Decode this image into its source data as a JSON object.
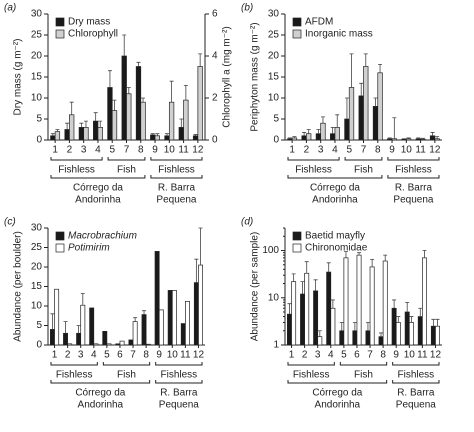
{
  "chart_data": [
    {
      "type": "bar",
      "panel": "(a)",
      "ylabel": "Dry mass (g m⁻²)",
      "y2label": "Chlorophyll a (mg m⁻²)",
      "categories": [
        "1",
        "2",
        "3",
        "4",
        "5",
        "7",
        "8",
        "9",
        "10",
        "11",
        "12"
      ],
      "series": [
        {
          "name": "Dry mass",
          "color": "#1a1a1a",
          "values": [
            1,
            2.5,
            3,
            4.5,
            12.5,
            20,
            17.5,
            1.2,
            1,
            3,
            1
          ],
          "errors": [
            0.5,
            1.5,
            1,
            2,
            4,
            5,
            1,
            0.3,
            0.5,
            2,
            0.3
          ]
        },
        {
          "name": "Chlorophyll",
          "color": "#d0d0d0",
          "axis": "y2",
          "values": [
            0.4,
            1.2,
            0.6,
            0.6,
            1.4,
            2.2,
            1.8,
            0.2,
            1.8,
            1.9,
            3.5
          ],
          "errors": [
            0.1,
            0.6,
            0.3,
            0.3,
            0.5,
            0.3,
            0.2,
            0.1,
            1,
            0.7,
            0.6
          ]
        }
      ],
      "ylim": [
        0,
        30
      ],
      "yticks": [
        0,
        5,
        10,
        15,
        20,
        25,
        30
      ],
      "y2lim": [
        0,
        6
      ],
      "y2ticks": [
        0,
        2,
        4,
        6
      ],
      "legend": "upper left",
      "groups": [
        "Fishless",
        "Fish",
        "Fishless"
      ],
      "sites": [
        [
          "Córrego da",
          "Andorinha"
        ],
        [
          "R. Barra",
          "Pequena"
        ]
      ]
    },
    {
      "type": "bar",
      "panel": "(b)",
      "ylabel": "Periphyton mass (g m⁻²)",
      "categories": [
        "1",
        "2",
        "3",
        "4",
        "5",
        "7",
        "8",
        "9",
        "10",
        "11",
        "12"
      ],
      "series": [
        {
          "name": "AFDM",
          "color": "#1a1a1a",
          "values": [
            0.3,
            1,
            1.5,
            1.5,
            5,
            10.5,
            8,
            0.3,
            0.2,
            0.3,
            1
          ],
          "errors": [
            0.2,
            0.8,
            1,
            1.5,
            5,
            3,
            2,
            0.2,
            0.1,
            0.2,
            0.8
          ]
        },
        {
          "name": "Inorganic mass",
          "color": "#d0d0d0",
          "values": [
            0.5,
            1.5,
            4,
            3,
            12.5,
            17.5,
            16,
            0.3,
            0.3,
            0.2,
            0.3
          ],
          "errors": [
            0.3,
            1,
            1.5,
            3,
            8,
            3,
            2,
            5,
            0.2,
            0.2,
            0.5
          ]
        }
      ],
      "ylim": [
        0,
        30
      ],
      "yticks": [
        0,
        5,
        10,
        15,
        20,
        25,
        30
      ],
      "legend": "upper left",
      "groups": [
        "Fishless",
        "Fish",
        "Fishless"
      ],
      "sites": [
        [
          "Córrego da",
          "Andorinha"
        ],
        [
          "R. Barra",
          "Pequena"
        ]
      ]
    },
    {
      "type": "bar",
      "panel": "(c)",
      "ylabel": "Abundance (per boulder)",
      "italic_legend": true,
      "categories": [
        "1",
        "2",
        "3",
        "4",
        "5",
        "6",
        "7",
        "8",
        "9",
        "10",
        "11",
        "12"
      ],
      "series": [
        {
          "name": "Macrobrachium",
          "color": "#1a1a1a",
          "values": [
            4,
            3,
            3,
            9.5,
            3.5,
            0.3,
            1.3,
            7.8,
            24,
            14,
            5.5,
            16
          ],
          "errors": [
            4,
            3,
            2,
            0,
            0,
            0,
            0,
            1,
            0,
            0,
            0,
            6
          ]
        },
        {
          "name": "Potimirim",
          "color": "#ffffff",
          "values": [
            14.3,
            0.3,
            10.2,
            0.3,
            0.3,
            1,
            6,
            0.2,
            9,
            14,
            11.2,
            20.5
          ],
          "errors": [
            0,
            0,
            3,
            0,
            0,
            0,
            1,
            0,
            0,
            0,
            0,
            9.5
          ]
        }
      ],
      "ylim": [
        0,
        30
      ],
      "yticks": [
        0,
        5,
        10,
        15,
        20,
        25,
        30
      ],
      "legend": "upper left",
      "groups": [
        "Fishless",
        "Fish",
        "Fishless"
      ],
      "sites": [
        [
          "Córrego da",
          "Andorinha"
        ],
        [
          "R. Barra",
          "Pequena"
        ]
      ]
    },
    {
      "type": "bar",
      "panel": "(d)",
      "ylabel": "Abundance (per sample)",
      "log": true,
      "categories": [
        "1",
        "2",
        "3",
        "4",
        "5",
        "6",
        "7",
        "8",
        "9",
        "10",
        "11",
        "12"
      ],
      "series": [
        {
          "name": "Baetid mayfly",
          "color": "#1a1a1a",
          "values": [
            4.5,
            12,
            14,
            35,
            2,
            2,
            2,
            1.5,
            6,
            5,
            4,
            2.5
          ],
          "errors": [
            3,
            10,
            10,
            20,
            1,
            1,
            1,
            0.3,
            3,
            3,
            2,
            1
          ]
        },
        {
          "name": "Chironomidae",
          "color": "#ffffff",
          "values": [
            22,
            33,
            1.5,
            6,
            70,
            80,
            45,
            60,
            3,
            3,
            70,
            2.5
          ],
          "errors": [
            10,
            25,
            0.5,
            3,
            25,
            10,
            20,
            20,
            1,
            1,
            30,
            1
          ]
        }
      ],
      "ylim": [
        1,
        300
      ],
      "yticks": [
        1,
        10,
        100
      ],
      "legend": "upper left",
      "groups": [
        "Fishless",
        "Fish",
        "Fishless"
      ],
      "sites": [
        [
          "Córrego da",
          "Andorinha"
        ],
        [
          "R. Barra",
          "Pequena"
        ]
      ]
    }
  ]
}
